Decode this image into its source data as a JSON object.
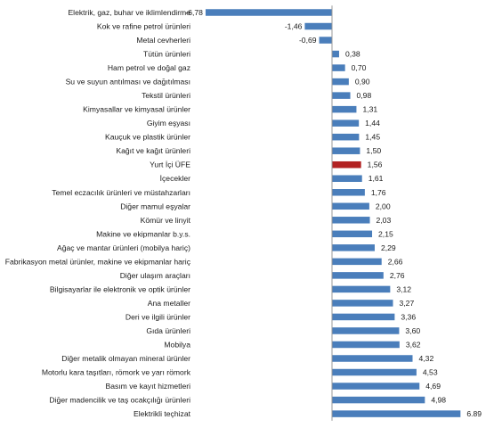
{
  "chart_data": {
    "type": "bar",
    "orientation": "horizontal",
    "title": "",
    "xlabel": "",
    "ylabel": "",
    "grid": false,
    "legend": "none",
    "xlim": [
      -7.5,
      7.2
    ],
    "colors": {
      "bar": "#4a7ebb",
      "highlight": "#b22222"
    },
    "highlight_category": "Yurt İçi ÜFE",
    "categories": [
      "Elektrik, gaz, buhar ve iklimlendirme",
      "Kok ve rafine petrol ürünleri",
      "Metal cevherleri",
      "Tütün ürünleri",
      "Ham petrol ve doğal gaz",
      "Su ve suyun antılması ve dağıtılması",
      "Tekstil ürünleri",
      "Kimyasallar ve kimyasal ürünler",
      "Giyim eşyası",
      "Kauçuk ve plastik ürünler",
      "Kağıt ve kağıt ürünleri",
      "Yurt İçi ÜFE",
      "İçecekler",
      "Temel eczacılık ürünleri ve müstahzarları",
      "Diğer mamul eşyalar",
      "Kömür ve linyit",
      "Makine ve ekipmanlar b.y.s.",
      "Ağaç ve mantar ürünleri (mobilya hariç)",
      "Fabrikasyon metal ürünler, makine ve ekipmanlar hariç",
      "Diğer ulaşım araçları",
      "Bilgisayarlar ile elektronik ve optik ürünler",
      "Ana metaller",
      "Deri ve ilgili ürünler",
      "Gıda ürünleri",
      "Mobilya",
      "Diğer metalik olmayan mineral ürünler",
      "Motorlu kara taşıtları, römork ve yarı römork",
      "Basım ve kayıt hizmetleri",
      "Diğer madencilik ve taş ocakçılığı ürünleri",
      "Elektrikli teçhizat"
    ],
    "values": [
      -6.78,
      -1.46,
      -0.69,
      0.38,
      0.7,
      0.9,
      0.98,
      1.31,
      1.44,
      1.45,
      1.5,
      1.56,
      1.61,
      1.76,
      2.0,
      2.03,
      2.15,
      2.29,
      2.66,
      2.76,
      3.12,
      3.27,
      3.36,
      3.6,
      3.62,
      4.32,
      4.53,
      4.69,
      4.98,
      6.89
    ],
    "value_labels": [
      "-6,78",
      "-1,46",
      "-0,69",
      "0,38",
      "0,70",
      "0,90",
      "0,98",
      "1,31",
      "1,44",
      "1,45",
      "1,50",
      "1,56",
      "1,61",
      "1,76",
      "2,00",
      "2,03",
      "2,15",
      "2,29",
      "2,66",
      "2,76",
      "3,12",
      "3,27",
      "3,36",
      "3,60",
      "3,62",
      "4,32",
      "4,53",
      "4,69",
      "4,98",
      "6.89"
    ]
  }
}
